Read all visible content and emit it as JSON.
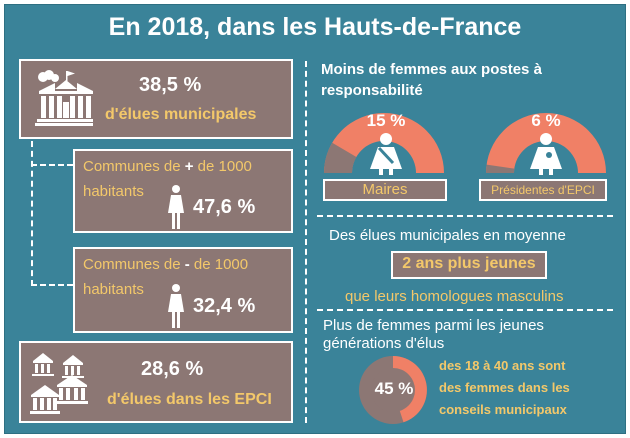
{
  "title": "En 2018, dans les Hauts-de-France",
  "left": {
    "municipales": {
      "pct": "38,5 %",
      "label": "d'élues municipales",
      "icon": "town-hall-icon"
    },
    "communes_plus": {
      "label_pre": "Communes de ",
      "sign": "+",
      "label_post": " de 1000",
      "label_line2": "habitants",
      "pct": "47,6 %",
      "icon": "woman-icon"
    },
    "communes_moins": {
      "label_pre": "Communes de ",
      "sign": "-",
      "label_post": " de 1000",
      "label_line2": "habitants",
      "pct": "32,4 %",
      "icon": "woman-icon"
    },
    "epci": {
      "pct": "28,6 %",
      "label": "d'élues dans les EPCI",
      "icon": "town-halls-icon"
    }
  },
  "right": {
    "postes": {
      "title_line1": "Moins de femmes aux postes à",
      "title_line2": "responsabilité",
      "maires": {
        "pct": "15 %",
        "value": 15,
        "label": "Maires"
      },
      "epci": {
        "pct": "6 %",
        "value": 6,
        "label": "Présidentes d'EPCI"
      }
    },
    "age": {
      "line1": "Des élues municipales en moyenne",
      "highlight": "2 ans plus jeunes",
      "line3": "que leurs homologues masculins"
    },
    "jeunes": {
      "title_line1": "Plus de femmes parmi les jeunes",
      "title_line2": "générations d'élus",
      "pct": "45 %",
      "value": 45,
      "desc_line1": "des 18 à 40 ans sont",
      "desc_line2": "des femmes dans les",
      "desc_line3": "conseils municipaux"
    }
  },
  "colors": {
    "background": "#3a8399",
    "box": "#8c7774",
    "accent": "#f08066",
    "gold": "#f3c86a",
    "white": "#ffffff"
  }
}
